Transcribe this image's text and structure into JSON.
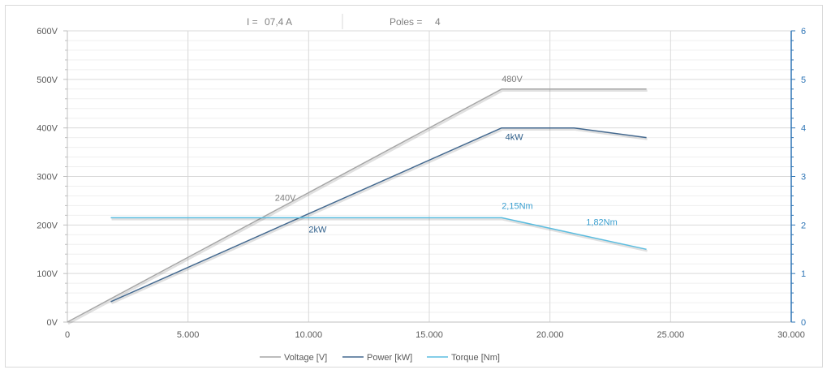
{
  "header": {
    "current_label": "I =",
    "current_value": "07,4 A",
    "poles_label": "Poles =",
    "poles_value": "4"
  },
  "colors": {
    "voltage": "#a6a6a6",
    "power": "#44698f",
    "torque": "#5bbde0",
    "grid": "#d9d9d9",
    "right_axis": "#2e75b6"
  },
  "chart_data": {
    "type": "line",
    "xlim": [
      0,
      30000
    ],
    "x_ticks": [
      "0",
      "5.000",
      "10.000",
      "15.000",
      "20.000",
      "25.000",
      "30.000"
    ],
    "x_tick_values": [
      0,
      5000,
      10000,
      15000,
      20000,
      25000,
      30000
    ],
    "y_left": {
      "lim": [
        0,
        600
      ],
      "ticks": [
        "0V",
        "100V",
        "200V",
        "300V",
        "400V",
        "500V",
        "600V"
      ],
      "tick_values": [
        0,
        100,
        200,
        300,
        400,
        500,
        600
      ]
    },
    "y_right": {
      "lim": [
        0,
        6
      ],
      "ticks": [
        "0",
        "1",
        "2",
        "3",
        "4",
        "5",
        "6"
      ],
      "tick_values": [
        0,
        1,
        2,
        3,
        4,
        5,
        6
      ]
    },
    "grid": true,
    "legend_position": "bottom",
    "series": [
      {
        "name": "Voltage [V]",
        "axis": "left",
        "x": [
          0,
          18000,
          24000
        ],
        "y": [
          0,
          480,
          480
        ]
      },
      {
        "name": "Power [kW]",
        "axis": "right",
        "x": [
          1800,
          18000,
          21000,
          24000
        ],
        "y": [
          0.42,
          4.0,
          4.0,
          3.8
        ]
      },
      {
        "name": "Torque [Nm]",
        "axis": "right",
        "x": [
          1800,
          18000,
          24000
        ],
        "y": [
          2.15,
          2.15,
          1.5
        ]
      }
    ],
    "annotations": [
      {
        "text": "480V",
        "x": 18000,
        "y": 495,
        "axis": "left",
        "series": 0
      },
      {
        "text": "240V",
        "x": 8600,
        "y": 250,
        "axis": "left",
        "series": 0
      },
      {
        "text": "4kW",
        "x": 18150,
        "y": 3.75,
        "axis": "right",
        "series": 1
      },
      {
        "text": "2kW",
        "x": 10000,
        "y": 1.85,
        "axis": "right",
        "series": 1
      },
      {
        "text": "2,15Nm",
        "x": 18000,
        "y": 2.33,
        "axis": "right",
        "series": 2
      },
      {
        "text": "1,82Nm",
        "x": 21500,
        "y": 2.0,
        "axis": "right",
        "series": 2
      }
    ]
  }
}
